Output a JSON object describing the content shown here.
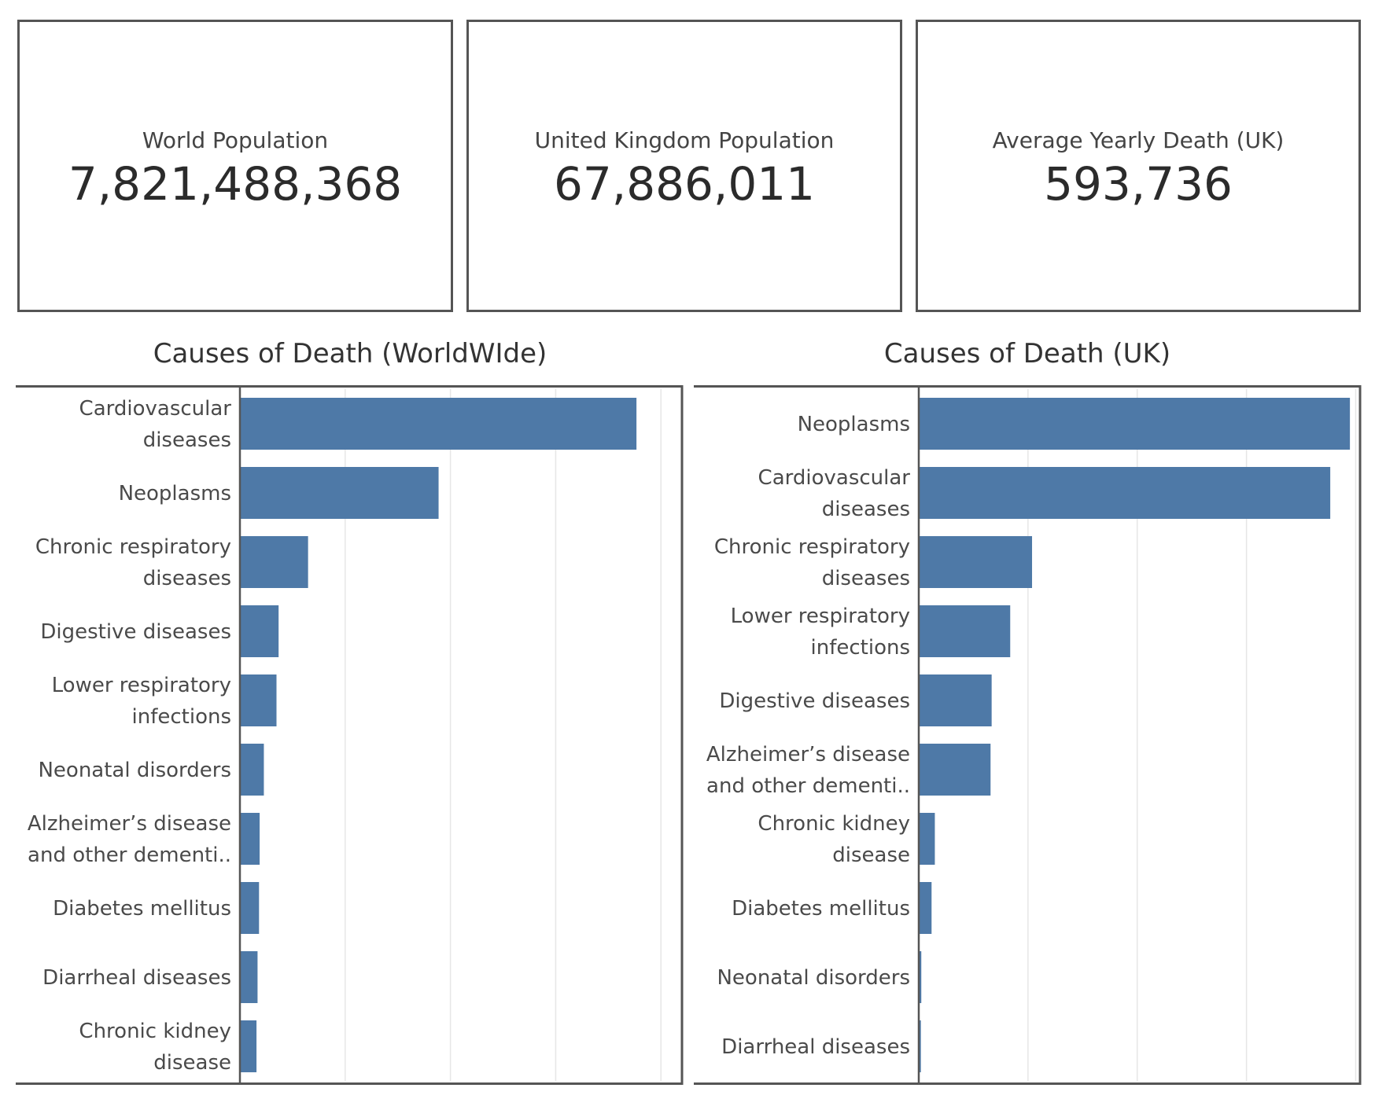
{
  "kpis": [
    {
      "label": "World Population",
      "value": "7,821,488,368"
    },
    {
      "label": "United Kingdom Population",
      "value": "67,886,011"
    },
    {
      "label": "Average Yearly Death (UK)",
      "value": "593,736"
    }
  ],
  "colors": {
    "bar": "#4e79a7",
    "border": "#555555",
    "grid": "#e6e6e6"
  },
  "chart_data": [
    {
      "type": "bar",
      "orientation": "horizontal",
      "title": "Causes of Death (WorldWIde)",
      "categories": [
        [
          "Cardiovascular",
          "diseases"
        ],
        [
          "Neoplasms"
        ],
        [
          "Chronic respiratory",
          "diseases"
        ],
        [
          "Digestive diseases"
        ],
        [
          "Lower respiratory",
          "infections"
        ],
        [
          "Neonatal disorders"
        ],
        [
          "Alzheimer’s disease",
          "and other dementi.."
        ],
        [
          "Diabetes mellitus"
        ],
        [
          "Diarrheal diseases"
        ],
        [
          "Chronic kidney",
          "disease"
        ]
      ],
      "values": [
        1.88,
        0.94,
        0.32,
        0.18,
        0.17,
        0.11,
        0.09,
        0.087,
        0.08,
        0.075
      ],
      "xlim": [
        0,
        2.1
      ],
      "gridlines": [
        0.5,
        1.0,
        1.5,
        2.0
      ],
      "grid": true
    },
    {
      "type": "bar",
      "orientation": "horizontal",
      "title": "Causes of Death (UK)",
      "categories": [
        [
          "Neoplasms"
        ],
        [
          "Cardiovascular",
          "diseases"
        ],
        [
          "Chronic respiratory",
          "diseases"
        ],
        [
          "Lower respiratory",
          "infections"
        ],
        [
          "Digestive diseases"
        ],
        [
          "Alzheimer’s disease",
          "and other dementi.."
        ],
        [
          "Chronic kidney",
          "disease"
        ],
        [
          "Diabetes mellitus"
        ],
        [
          "Neonatal disorders"
        ],
        [
          "Diarrheal diseases"
        ]
      ],
      "values": [
        197,
        188,
        51.5,
        41.5,
        33,
        32.5,
        7,
        5.5,
        0.8,
        0.6
      ],
      "xlim": [
        0,
        202
      ],
      "gridlines": [
        50,
        100,
        150,
        200
      ],
      "grid": true
    }
  ]
}
